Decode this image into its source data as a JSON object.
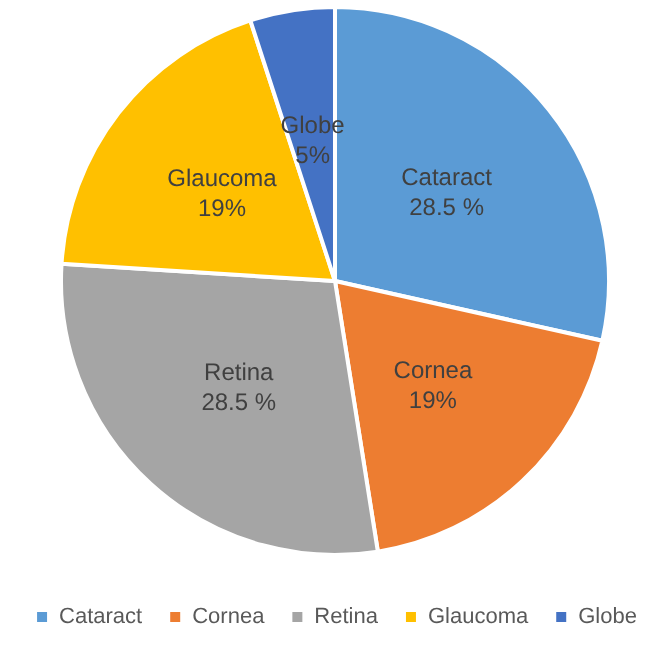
{
  "chart_data": {
    "type": "pie",
    "categories": [
      "Cataract",
      "Cornea",
      "Retina",
      "Glaucoma",
      "Globe"
    ],
    "values": [
      28.5,
      19,
      28.5,
      19,
      5
    ],
    "colors": [
      "#5b9bd5",
      "#ed7d31",
      "#a5a5a5",
      "#ffc000",
      "#4472c4"
    ],
    "value_labels": [
      "28.5 %",
      "19%",
      "28.5 %",
      "19%",
      "5%"
    ],
    "legend": "bottom"
  }
}
